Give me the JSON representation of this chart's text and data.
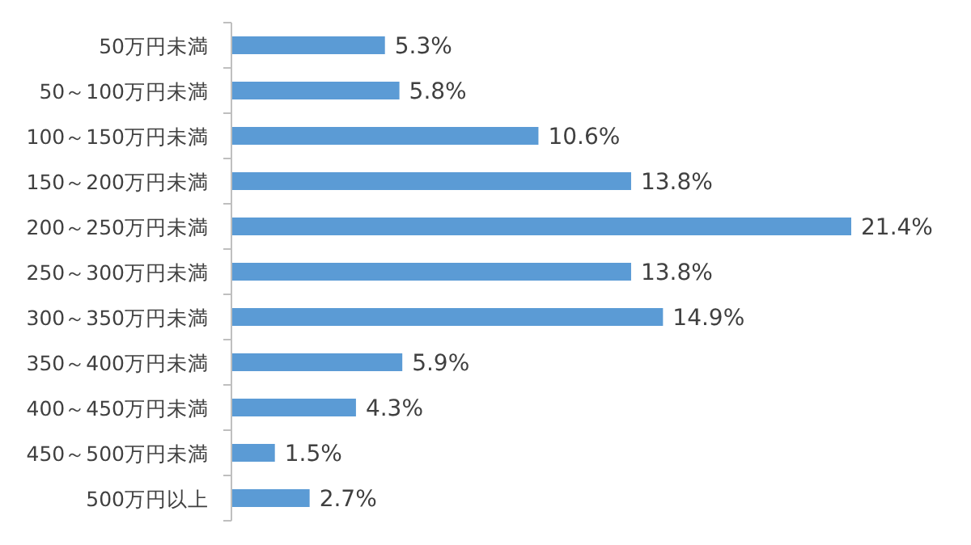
{
  "chart_data": {
    "type": "bar",
    "orientation": "horizontal",
    "categories": [
      "50万円未満",
      "50～100万円未満",
      "100～150万円未満",
      "150～200万円未満",
      "200～250万円未満",
      "250～300万円未満",
      "300～350万円未満",
      "350～400万円未満",
      "400～450万円未満",
      "450～500万円未満",
      "500万円以上"
    ],
    "values": [
      5.3,
      5.8,
      10.6,
      13.8,
      21.4,
      13.8,
      14.9,
      5.9,
      4.3,
      1.5,
      2.7
    ],
    "value_labels": [
      "5.3%",
      "5.8%",
      "10.6%",
      "13.8%",
      "21.4%",
      "13.8%",
      "14.9%",
      "5.9%",
      "4.3%",
      "1.5%",
      "2.7%"
    ],
    "color": "#5b9bd5"
  }
}
